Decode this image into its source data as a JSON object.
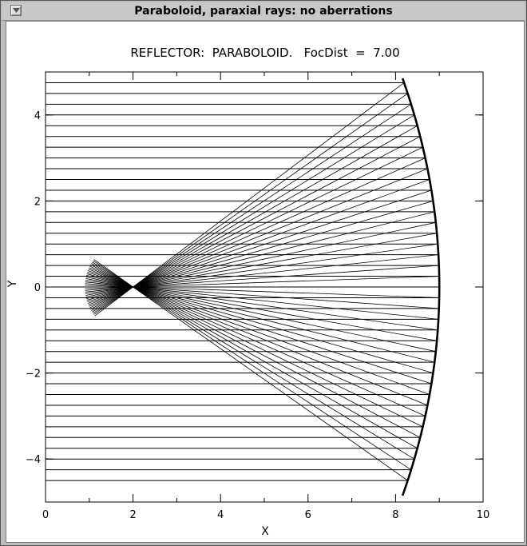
{
  "window": {
    "title": "Paraboloid, paraxial rays: no aberrations",
    "menu_icon": "chevron-down-icon"
  },
  "chart_data": {
    "type": "line",
    "title": "REFLECTOR:  PARABOLOID.   FocDist  =  7.00",
    "xlabel": "X",
    "ylabel": "Y",
    "xlim": [
      0,
      10
    ],
    "ylim": [
      -5,
      5
    ],
    "x_ticks": [
      0,
      2,
      4,
      6,
      8,
      10
    ],
    "x_tick_labels": [
      "0",
      "2",
      "4",
      "6",
      "8",
      "10"
    ],
    "y_ticks": [
      -4,
      -2,
      0,
      2,
      4
    ],
    "y_tick_labels": [
      "−4",
      "−2",
      "0",
      "2",
      "4"
    ],
    "mirror": {
      "vertex_x": 9.0,
      "focal_distance": 7.0,
      "y_range": [
        -4.85,
        4.85
      ]
    },
    "focus": [
      2.0,
      0.0
    ],
    "incoming_ray_start_x": 0,
    "ray_heights": [
      -4.5,
      -4.25,
      -4.0,
      -3.75,
      -3.5,
      -3.25,
      -3.0,
      -2.75,
      -2.5,
      -2.25,
      -2.0,
      -1.75,
      -1.5,
      -1.25,
      -1.0,
      -0.75,
      -0.5,
      -0.25,
      0.0,
      0.25,
      0.5,
      0.75,
      1.0,
      1.25,
      1.5,
      1.75,
      2.0,
      2.25,
      2.5,
      2.75,
      3.0,
      3.25,
      3.5,
      3.75,
      4.0,
      4.25,
      4.5,
      4.75
    ],
    "reflected_ray_past_focus": 1.1,
    "grid": false,
    "legend": "none",
    "colors": {
      "line": "#000000",
      "background": "#ffffff",
      "window": "#bdbdbd"
    }
  }
}
